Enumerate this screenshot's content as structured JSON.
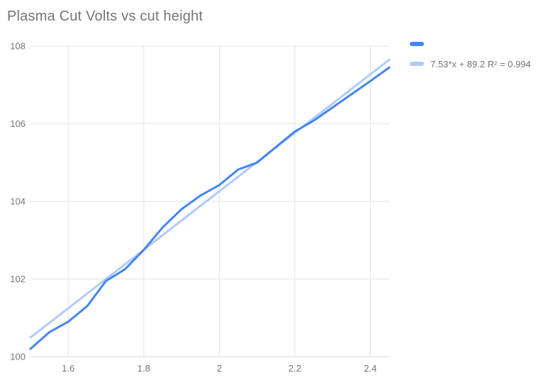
{
  "title": "Plasma Cut Volts vs cut height",
  "legend": {
    "series_label": "",
    "trend_label": "7.53*x + 89.2 R² = 0.994"
  },
  "colors": {
    "series": "#4285F4",
    "trend": "#AECBFA",
    "grid": "#E3E3E3",
    "axis": "#D6D6D6",
    "text": "#757575",
    "title_text": "#757575"
  },
  "chart_data": {
    "type": "line",
    "title": "Plasma Cut Volts vs cut height",
    "xlabel": "",
    "ylabel": "",
    "xlim": [
      1.5,
      2.45
    ],
    "ylim": [
      100,
      108
    ],
    "grid": true,
    "legend_position": "right-top",
    "x_ticks": [
      "1.6",
      "1.8",
      "2",
      "2.2",
      "2.4"
    ],
    "x_tick_values": [
      1.6,
      1.8,
      2,
      2.2,
      2.4
    ],
    "y_ticks": [
      "100",
      "102",
      "104",
      "106",
      "108"
    ],
    "y_tick_values": [
      100,
      102,
      104,
      106,
      108
    ],
    "x": [
      1.5,
      1.55,
      1.6,
      1.65,
      1.7,
      1.75,
      1.8,
      1.85,
      1.9,
      1.95,
      2.0,
      2.05,
      2.1,
      2.15,
      2.2,
      2.25,
      2.3,
      2.35,
      2.4,
      2.45
    ],
    "series": [
      {
        "name": "",
        "values": [
          100.2,
          100.63,
          100.9,
          101.3,
          101.95,
          102.25,
          102.75,
          103.33,
          103.8,
          104.15,
          104.42,
          104.82,
          105.0,
          105.4,
          105.8,
          106.08,
          106.42,
          106.76,
          107.1,
          107.45
        ]
      }
    ],
    "trendline": {
      "label": "7.53*x + 89.2 R² = 0.994",
      "slope": 7.53,
      "intercept": 89.2,
      "r2": 0.994
    }
  }
}
